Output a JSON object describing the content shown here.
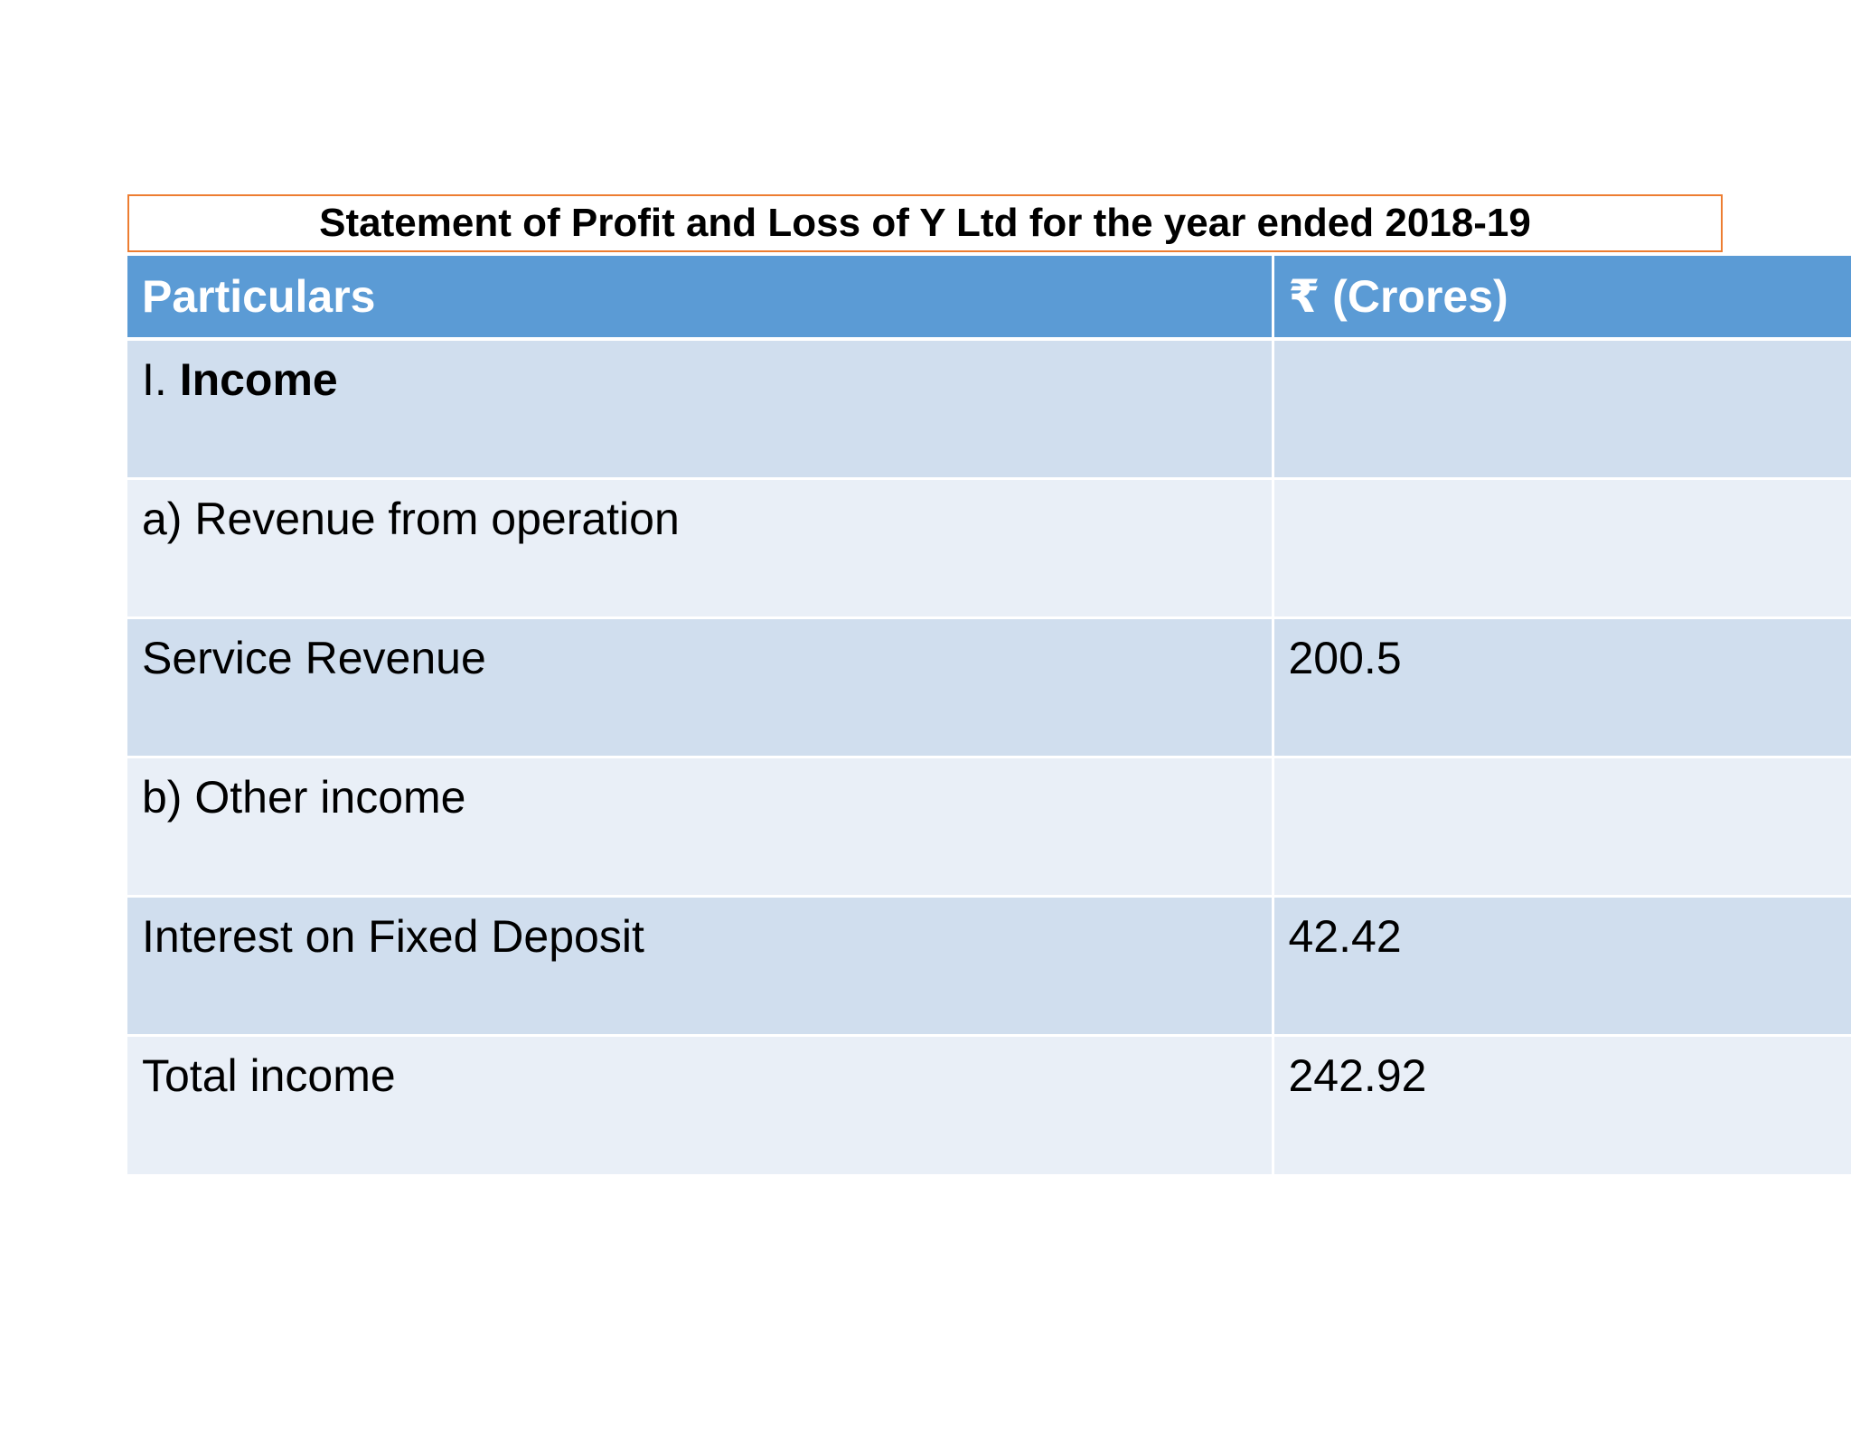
{
  "title": "Statement of Profit and Loss of Y Ltd for the year ended 2018-19",
  "table": {
    "headers": [
      "Particulars",
      "₹ (Crores)"
    ],
    "rows": [
      {
        "prefix": "I. ",
        "label": "Income",
        "value": ""
      },
      {
        "label": "a) Revenue from operation",
        "value": ""
      },
      {
        "label": "Service Revenue",
        "value": "200.5"
      },
      {
        "label": "b) Other income",
        "value": ""
      },
      {
        "label": "Interest on Fixed Deposit",
        "value": "42.42"
      },
      {
        "label": "Total income",
        "value": "242.92"
      }
    ]
  }
}
